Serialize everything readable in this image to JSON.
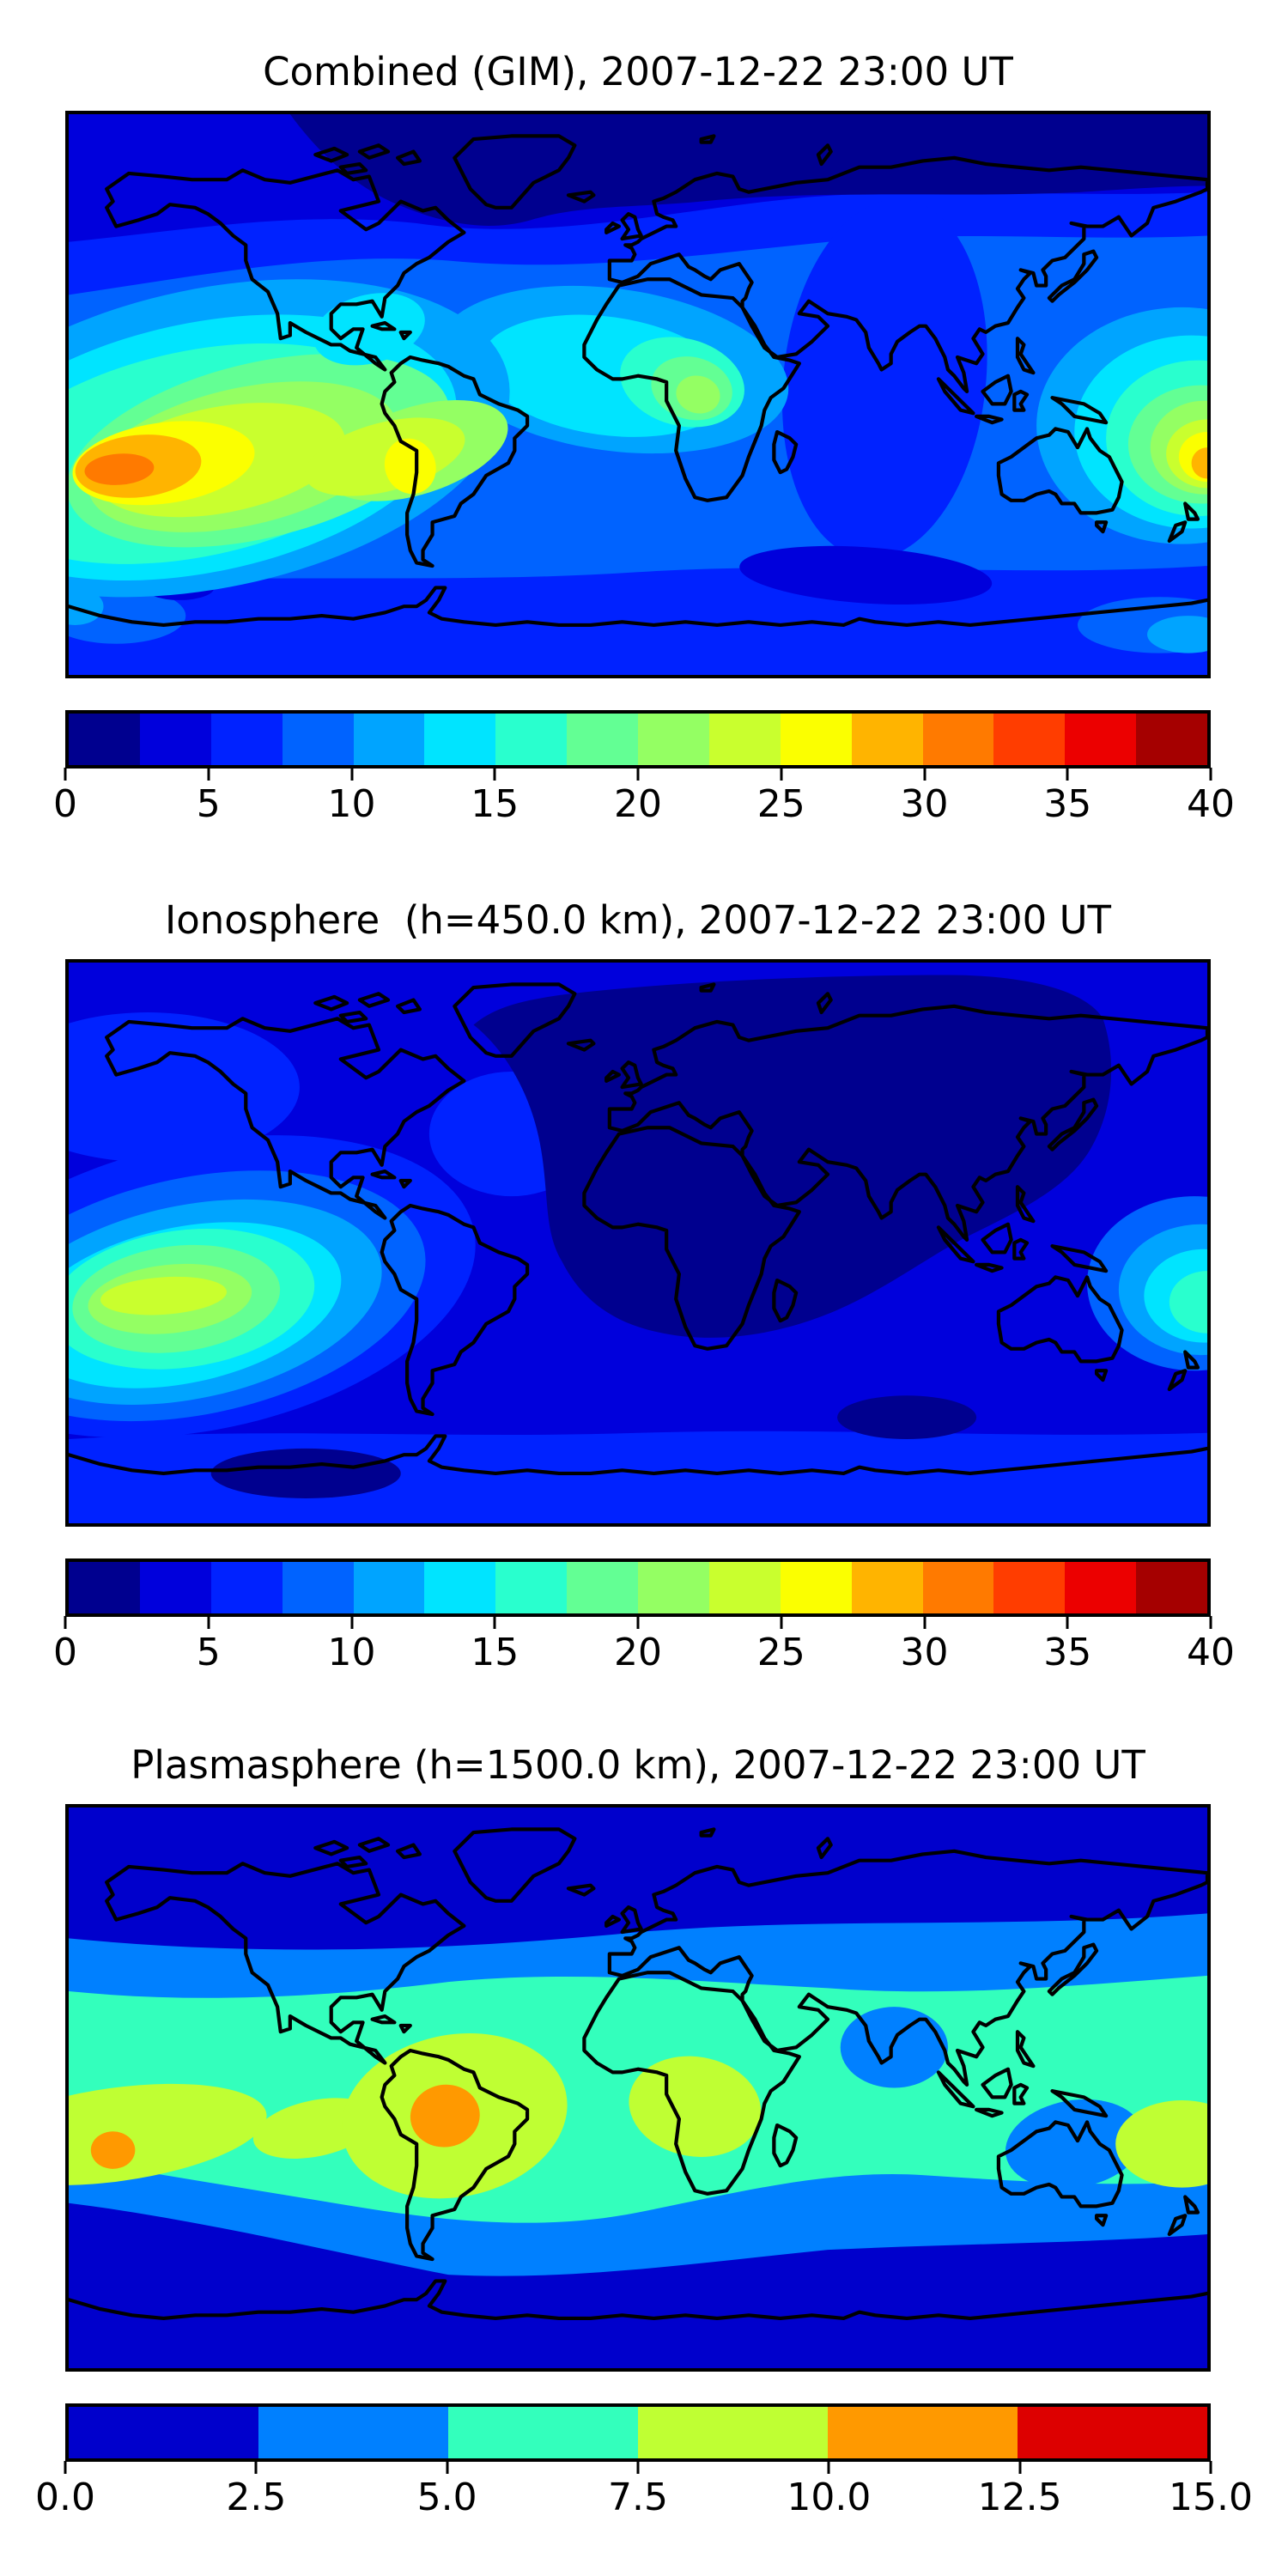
{
  "figure": {
    "background_color": "#ffffff",
    "text_color": "#000000",
    "description": "Three stacked filled-contour global maps of total electron content with discrete jet colorbars"
  },
  "panels": [
    {
      "id": "combined-gim",
      "title": "Combined (GIM), 2007-12-22 23:00 UT",
      "colorbar": {
        "vmin": 0,
        "vmax": 40,
        "tick_labels": [
          "0",
          "5",
          "10",
          "15",
          "20",
          "25",
          "30",
          "35",
          "40"
        ],
        "segment_colors": [
          "#00008F",
          "#0000DC",
          "#0022FF",
          "#0063FF",
          "#00A4FF",
          "#00E4FF",
          "#29FFCE",
          "#63FF94",
          "#94FF63",
          "#C9FF2E",
          "#FBFF00",
          "#FFB400",
          "#FF7A00",
          "#FF3D00",
          "#EC0000",
          "#A50000"
        ]
      }
    },
    {
      "id": "ionosphere",
      "title": "Ionosphere  (h=450.0 km), 2007-12-22 23:00 UT",
      "colorbar": {
        "vmin": 0,
        "vmax": 40,
        "tick_labels": [
          "0",
          "5",
          "10",
          "15",
          "20",
          "25",
          "30",
          "35",
          "40"
        ],
        "segment_colors": [
          "#00008F",
          "#0000DC",
          "#0022FF",
          "#0063FF",
          "#00A4FF",
          "#00E4FF",
          "#29FFCE",
          "#63FF94",
          "#94FF63",
          "#C9FF2E",
          "#FBFF00",
          "#FFB400",
          "#FF7A00",
          "#FF3D00",
          "#EC0000",
          "#A50000"
        ]
      }
    },
    {
      "id": "plasmasphere",
      "title": "Plasmasphere (h=1500.0 km), 2007-12-22 23:00 UT",
      "colorbar": {
        "vmin": 0,
        "vmax": 15,
        "tick_labels": [
          "0.0",
          "2.5",
          "5.0",
          "7.5",
          "10.0",
          "12.5",
          "15.0"
        ],
        "segment_colors": [
          "#0000CC",
          "#0080FF",
          "#33FFBC",
          "#BFFF33",
          "#FF9900",
          "#DD0000"
        ]
      }
    }
  ],
  "chart_data": [
    {
      "type": "heatmap",
      "subtype": "filled-contour world map with coastlines",
      "title": "Combined (GIM), 2007-12-22 23:00 UT",
      "component": "Combined (GIM)",
      "timestamp_ut": "2007-12-22 23:00",
      "projection": "equirectangular",
      "lon_range": [
        -180,
        180
      ],
      "lat_range": [
        -90,
        90
      ],
      "colormap": "jet",
      "n_levels": 16,
      "level_step": 2.5,
      "value_range": [
        0,
        40
      ],
      "colorbar_ticks": [
        0,
        5,
        10,
        15,
        20,
        25,
        30,
        35,
        40
      ],
      "legend_position": "below map, horizontal",
      "grid": "off",
      "features": [
        {
          "label": "primary equatorial-anomaly maximum over southeast Pacific",
          "lon": -150,
          "lat": -25,
          "value_range": [
            30,
            32.5
          ]
        },
        {
          "label": "yellow high band extending over Peru/South America coast",
          "lon": -110,
          "lat": -23,
          "value_range": [
            25,
            30
          ]
        },
        {
          "label": "secondary maximum at west Pacific map edge",
          "lon": 178,
          "lat": -23,
          "value_range": [
            27.5,
            30
          ]
        },
        {
          "label": "moderate enhancement over equatorial Africa / Atlantic",
          "lon": 18,
          "lat": 0,
          "value_range": [
            17.5,
            22.5
          ]
        },
        {
          "label": "cyan band over Caribbean / Central America",
          "lon": -85,
          "lat": 20,
          "value_range": [
            12.5,
            15
          ]
        },
        {
          "label": "nightside low across high northern latitudes (N Canada, Greenland, Siberia)",
          "lon": 60,
          "lat": 70,
          "value_range": [
            0,
            2.5
          ]
        },
        {
          "label": "low swath over central Asia, India and south Indian Ocean",
          "lon": 80,
          "lat": 5,
          "value_range": [
            2.5,
            5
          ]
        },
        {
          "label": "dark lens in south Indian Ocean",
          "lon": 72,
          "lat": -58,
          "value_range": [
            2.5,
            5
          ]
        },
        {
          "label": "southern-ocean / Antarctic background",
          "lon": 0,
          "lat": -65,
          "value_range": [
            2.5,
            7.5
          ]
        }
      ]
    },
    {
      "type": "heatmap",
      "subtype": "filled-contour world map with coastlines",
      "title": "Ionosphere  (h=450.0 km), 2007-12-22 23:00 UT",
      "component": "Ionosphere",
      "height_km": 450.0,
      "timestamp_ut": "2007-12-22 23:00",
      "projection": "equirectangular",
      "lon_range": [
        -180,
        180
      ],
      "lat_range": [
        -90,
        90
      ],
      "colormap": "jet",
      "n_levels": 16,
      "level_step": 2.5,
      "value_range": [
        0,
        40
      ],
      "colorbar_ticks": [
        0,
        5,
        10,
        15,
        20,
        25,
        30,
        35,
        40
      ],
      "legend_position": "below map, horizontal",
      "grid": "off",
      "features": [
        {
          "label": "maximum over southeast Pacific (yellow-green core)",
          "lon": -145,
          "lat": -17,
          "value_range": [
            22.5,
            25
          ]
        },
        {
          "label": "broad nightside minimum covering Europe, Africa, Asia and Indian Ocean",
          "lon": 40,
          "lat": 25,
          "value_range": [
            0,
            2.5
          ]
        },
        {
          "label": "moderate cyan/turquoise patch at west Pacific map edge",
          "lon": 178,
          "lat": -17,
          "value_range": [
            15,
            17.5
          ]
        },
        {
          "label": "North America / north Pacific background",
          "lon": -120,
          "lat": 45,
          "value_range": [
            2.5,
            7.5
          ]
        },
        {
          "label": "dark lens in south Indian Ocean",
          "lon": 85,
          "lat": -56,
          "value_range": [
            0,
            2.5
          ]
        },
        {
          "label": "southern-ocean band near Antarctica",
          "lon": 0,
          "lat": -70,
          "value_range": [
            2.5,
            7.5
          ]
        }
      ]
    },
    {
      "type": "heatmap",
      "subtype": "filled-contour world map with coastlines",
      "title": "Plasmasphere (h=1500.0 km), 2007-12-22 23:00 UT",
      "component": "Plasmasphere",
      "height_km": 1500.0,
      "timestamp_ut": "2007-12-22 23:00",
      "projection": "equirectangular",
      "lon_range": [
        -180,
        180
      ],
      "lat_range": [
        -90,
        90
      ],
      "colormap": "jet",
      "n_levels": 6,
      "level_step": 2.5,
      "value_range": [
        0,
        15
      ],
      "colorbar_ticks": [
        0.0,
        2.5,
        5.0,
        7.5,
        10.0,
        12.5,
        15.0
      ],
      "legend_position": "below map, horizontal",
      "grid": "off",
      "features": [
        {
          "label": "turquoise equatorial belt spanning all longitudes roughly between 30N and 30S",
          "value_range": [
            5,
            7.5
          ]
        },
        {
          "label": "enhanced belt over South America",
          "lon": -58,
          "lat": -9,
          "value_range": [
            7.5,
            10
          ]
        },
        {
          "label": "enhanced patch over central Africa",
          "lon": 18,
          "lat": -6,
          "value_range": [
            7.5,
            10
          ]
        },
        {
          "label": "enhanced patch at southeast Pacific map left edge",
          "lon": -165,
          "lat": -15,
          "value_range": [
            7.5,
            10
          ]
        },
        {
          "label": "enhanced patch at west Pacific map right edge",
          "lon": 172,
          "lat": -18,
          "value_range": [
            7.5,
            10
          ]
        },
        {
          "label": "orange maximum over western Amazon / Peru",
          "lon": -61,
          "lat": -9,
          "value_range": [
            10,
            12.5
          ]
        },
        {
          "label": "small orange spot in south-central Pacific",
          "lon": -166,
          "lat": -20,
          "value_range": [
            10,
            12.5
          ]
        },
        {
          "label": "depression over India / Bay of Bengal",
          "lon": 81,
          "lat": 13,
          "value_range": [
            2.5,
            5
          ]
        },
        {
          "label": "depression over north Australia / Melanesia",
          "lon": 138,
          "lat": -18,
          "value_range": [
            2.5,
            5
          ]
        },
        {
          "label": "dark polar bands poleward of about 50 degrees in both hemispheres",
          "value_range": [
            0,
            2.5
          ]
        }
      ]
    }
  ]
}
